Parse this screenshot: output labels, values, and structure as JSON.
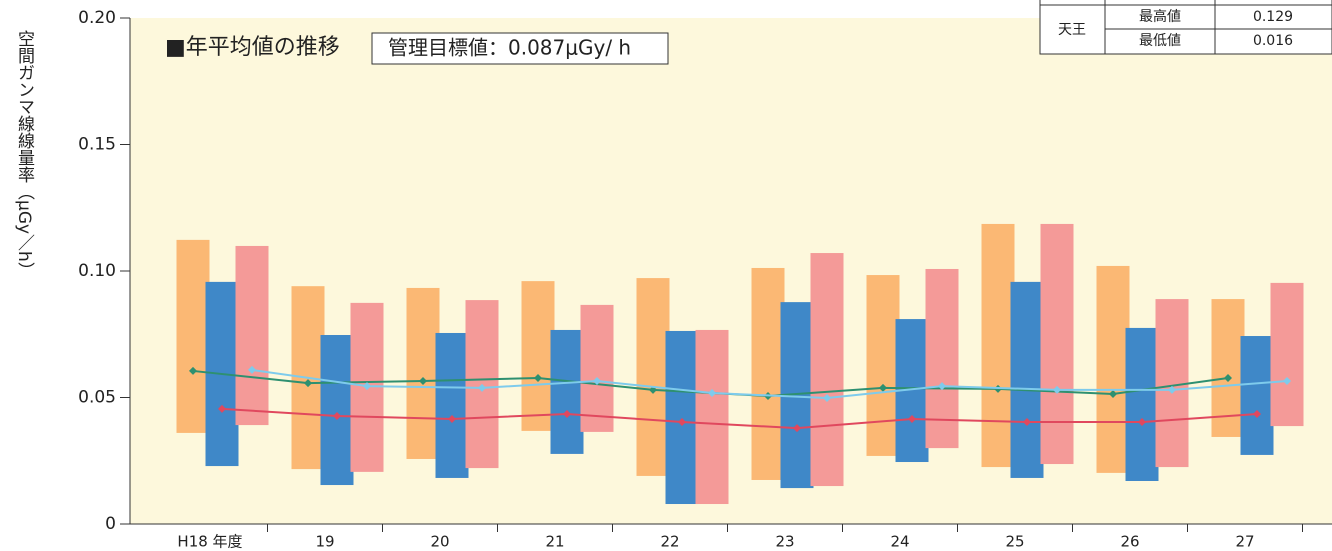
{
  "chart_data": {
    "type": "floating_bar",
    "title": "■年平均値の推移",
    "annotation": "管理目標値：0.087μGy/ h",
    "y_label": "空間ガンマ線線量率（μGy／h）",
    "categories": [
      "H18 年度",
      "19",
      "20",
      "21",
      "22",
      "23",
      "24",
      "25",
      "26",
      "27"
    ],
    "series": [
      {
        "color": "#fbb874",
        "high": [
          0.1123,
          0.094,
          0.0933,
          0.096,
          0.0972,
          0.1012,
          0.0984,
          0.1186,
          0.102,
          0.0889
        ],
        "low": [
          0.036,
          0.0217,
          0.0257,
          0.0368,
          0.019,
          0.0174,
          0.0269,
          0.0225,
          0.0202,
          0.0344
        ]
      },
      {
        "color": "#3f88c8",
        "high": [
          0.0957,
          0.0747,
          0.0755,
          0.0767,
          0.0763,
          0.0877,
          0.081,
          0.0957,
          0.0775,
          0.0743
        ],
        "low": [
          0.0229,
          0.0154,
          0.0182,
          0.0277,
          0.0079,
          0.0142,
          0.0245,
          0.0182,
          0.017,
          0.0273
        ]
      },
      {
        "color": "#f49a98",
        "high": [
          0.1099,
          0.0874,
          0.0885,
          0.0866,
          0.0767,
          0.1071,
          0.1008,
          0.1186,
          0.0889,
          0.0953
        ],
        "low": [
          0.0391,
          0.0206,
          0.0221,
          0.0364,
          0.0079,
          0.015,
          0.03,
          0.0237,
          0.0225,
          0.0387
        ]
      }
    ],
    "lines": [
      {
        "color": "#2e9070",
        "values": [
          0.0605,
          0.0557,
          0.0565,
          0.0577,
          0.053,
          0.0506,
          0.0538,
          0.0534,
          0.0514,
          0.0577
        ]
      },
      {
        "color": "#e0485e",
        "values": [
          0.0455,
          0.0427,
          0.0415,
          0.0435,
          0.0403,
          0.0379,
          0.0415,
          0.0403,
          0.0403,
          0.0435
        ]
      },
      {
        "color": "#7ecbec",
        "values": [
          0.0609,
          0.0545,
          0.0538,
          0.0565,
          0.0518,
          0.0498,
          0.0545,
          0.053,
          0.053,
          0.0565
        ]
      }
    ],
    "ylim": [
      0,
      0.2
    ],
    "yticks": [
      0,
      0.05,
      {
        "value": 0.1,
        "label": "0.10"
      },
      0.15,
      {
        "value": 0.2,
        "label": "0.20"
      }
    ]
  },
  "table": {
    "station": "天王",
    "rows": [
      [
        "最高値",
        "0.129"
      ],
      [
        "最低値",
        "0.016"
      ]
    ]
  }
}
